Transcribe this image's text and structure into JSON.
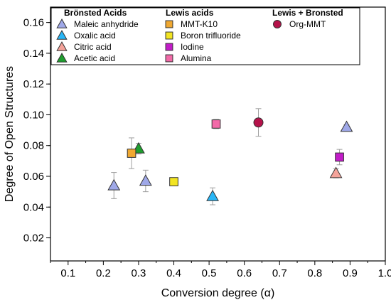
{
  "chart_data": {
    "type": "scatter",
    "xlabel": "Conversion degree (α)",
    "ylabel": "Degree of Open Structures",
    "xlim": [
      0.05,
      1.0
    ],
    "ylim": [
      0.005,
      0.17
    ],
    "xticks": [
      "0.1",
      "0.2",
      "0.3",
      "0.4",
      "0.5",
      "0.6",
      "0.7",
      "0.8",
      "0.9",
      "1.0"
    ],
    "yticks": [
      "0.02",
      "0.04",
      "0.06",
      "0.08",
      "0.10",
      "0.12",
      "0.14",
      "0.16"
    ],
    "legend_placement": "top",
    "groups": [
      {
        "heading": "Brönsted Acids",
        "series": [
          0,
          1,
          2,
          3
        ]
      },
      {
        "heading": "Lewis acids",
        "series": [
          4,
          5,
          6,
          7
        ]
      },
      {
        "heading": "Lewis + Bronsted",
        "series": [
          8
        ]
      }
    ],
    "series": [
      {
        "name": "Maleic anhydride",
        "marker": "triangle",
        "color": "#9fa8e8",
        "points": [
          {
            "x": 0.23,
            "y": 0.054,
            "err": 0.0085
          },
          {
            "x": 0.32,
            "y": 0.057,
            "err": 0.007
          },
          {
            "x": 0.89,
            "y": 0.092,
            "err": 0.0015
          }
        ]
      },
      {
        "name": "Oxalic acid",
        "marker": "triangle",
        "color": "#29b6f6",
        "points": [
          {
            "x": 0.51,
            "y": 0.047,
            "err": 0.0055
          }
        ]
      },
      {
        "name": "Citric acid",
        "marker": "triangle",
        "color": "#f4a39a",
        "points": [
          {
            "x": 0.86,
            "y": 0.062,
            "err": 0.003
          }
        ]
      },
      {
        "name": "Acetic acid",
        "marker": "triangle",
        "color": "#1e9e2e",
        "points": [
          {
            "x": 0.3,
            "y": 0.078,
            "err": 0.0035
          }
        ]
      },
      {
        "name": "MMT-K10",
        "marker": "square",
        "color": "#f0a830",
        "points": [
          {
            "x": 0.28,
            "y": 0.075,
            "err": 0.01
          }
        ]
      },
      {
        "name": "Boron trifluoride",
        "marker": "square",
        "color": "#f2e422",
        "points": [
          {
            "x": 0.4,
            "y": 0.0565,
            "err": 0.0
          }
        ]
      },
      {
        "name": "Iodine",
        "marker": "square",
        "color": "#c21cc8",
        "points": [
          {
            "x": 0.87,
            "y": 0.0725,
            "err": 0.005
          }
        ]
      },
      {
        "name": "Alumina",
        "marker": "square",
        "color": "#f26aa8",
        "points": [
          {
            "x": 0.52,
            "y": 0.094,
            "err": 0.003
          }
        ]
      },
      {
        "name": "Org-MMT",
        "marker": "circle",
        "color": "#b5124a",
        "points": [
          {
            "x": 0.64,
            "y": 0.095,
            "err": 0.009
          }
        ]
      }
    ]
  }
}
